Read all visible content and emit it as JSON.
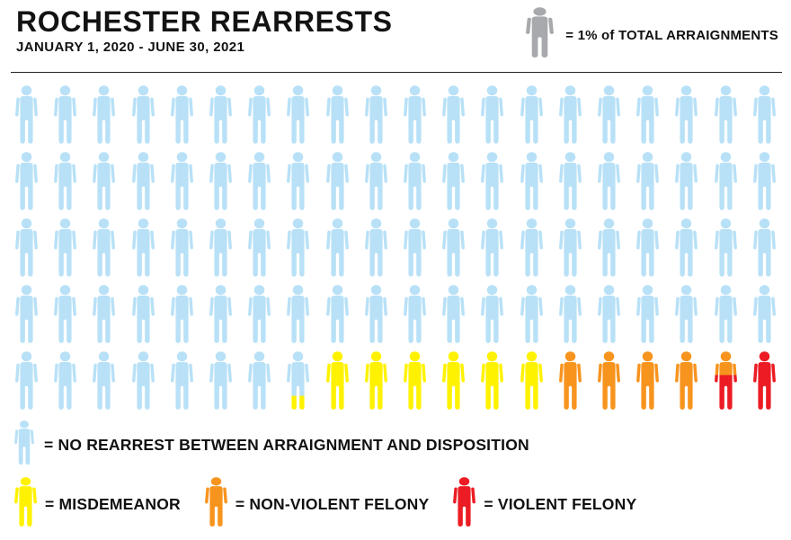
{
  "header": {
    "title": "ROCHESTER REARRESTS",
    "subtitle": "JANUARY 1, 2020 - JUNE 30, 2021"
  },
  "unit_legend": {
    "icon_color": "#A7A9AC",
    "label": "= 1% of TOTAL ARRAIGNMENTS"
  },
  "chart_data": {
    "type": "pictogram",
    "title": "Rochester Rearrests",
    "subtitle": "January 1, 2020 - June 30, 2021",
    "unit": "1 person icon = 1% of total arraignments",
    "grid": {
      "rows": 5,
      "cols": 20,
      "total_icons": 100
    },
    "segments": [
      {
        "label": "No rearrest between arraignment and disposition",
        "color": "#B8E1F7",
        "percent": 87.75
      },
      {
        "label": "Misdemeanor",
        "color": "#FFF200",
        "percent": 6.25
      },
      {
        "label": "Non-violent felony",
        "color": "#F7941E",
        "percent": 4.4
      },
      {
        "label": "Violent felony",
        "color": "#EC1C24",
        "percent": 1.6
      }
    ]
  },
  "legend_primary": {
    "color": "#B8E1F7",
    "label": "= NO REARREST BETWEEN ARRAIGNMENT AND DISPOSITION"
  },
  "legend_items": [
    {
      "color": "#FFF200",
      "label": "= MISDEMEANOR"
    },
    {
      "color": "#F7941E",
      "label": "= NON-VIOLENT FELONY"
    },
    {
      "color": "#EC1C24",
      "label": "= VIOLENT FELONY"
    }
  ]
}
